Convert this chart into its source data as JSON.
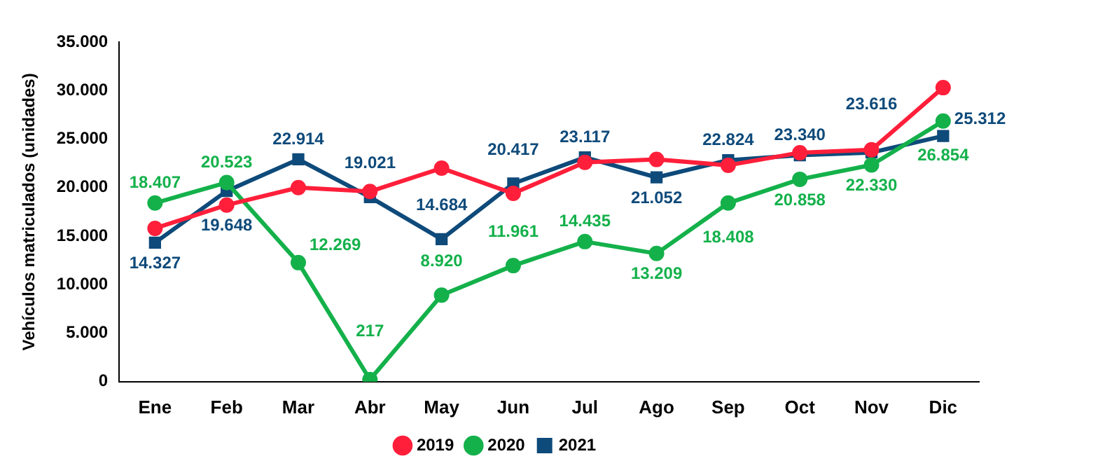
{
  "chart_data": {
    "type": "line",
    "ylabel": "Vehículos matriculados (unidades)",
    "categories": [
      "Ene",
      "Feb",
      "Mar",
      "Abr",
      "May",
      "Jun",
      "Jul",
      "Ago",
      "Sep",
      "Oct",
      "Nov",
      "Dic"
    ],
    "series": [
      {
        "name": "2019",
        "color": "#ff1f3a",
        "marker": "circle",
        "values": [
          15800,
          18200,
          20000,
          19600,
          22000,
          19400,
          22600,
          22900,
          22300,
          23600,
          23900,
          30300
        ]
      },
      {
        "name": "2020",
        "color": "#14b14b",
        "marker": "circle",
        "values": [
          18407,
          20523,
          12269,
          217,
          8920,
          11961,
          14435,
          13209,
          18408,
          20858,
          22330,
          26854
        ],
        "value_labels": [
          "18.407",
          "20.523",
          "12.269",
          "217",
          "8.920",
          "11.961",
          "14.435",
          "13.209",
          "18.408",
          "20.858",
          "22.330",
          "26.854"
        ]
      },
      {
        "name": "2021",
        "color": "#0e4a7a",
        "marker": "square",
        "values": [
          14327,
          19648,
          22914,
          19021,
          14684,
          20417,
          23117,
          21052,
          22824,
          23340,
          23616,
          25312
        ],
        "value_labels": [
          "14.327",
          "19.648",
          "22.914",
          "19.021",
          "14.684",
          "20.417",
          "23.117",
          "21.052",
          "22.824",
          "23.340",
          "23.616",
          "25.312"
        ]
      }
    ],
    "ylim": [
      0,
      35000
    ],
    "yticks": [
      {
        "value": 0,
        "label": "0"
      },
      {
        "value": 5000,
        "label": "5.000"
      },
      {
        "value": 10000,
        "label": "10.000"
      },
      {
        "value": 15000,
        "label": "15.000"
      },
      {
        "value": 20000,
        "label": "20.000"
      },
      {
        "value": 25000,
        "label": "25.000"
      },
      {
        "value": 30000,
        "label": "30.000"
      },
      {
        "value": 35000,
        "label": "35.000"
      }
    ],
    "grid": false,
    "legend": "bottom",
    "line_style": "solid"
  }
}
